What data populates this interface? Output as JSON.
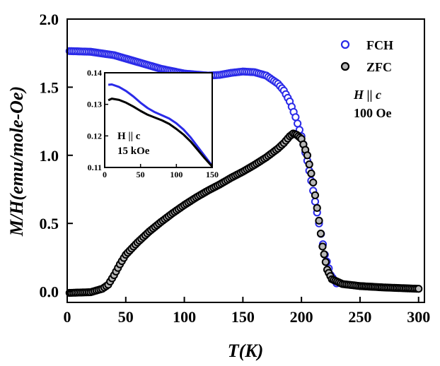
{
  "chart_data": {
    "type": "scatter",
    "title": "",
    "xlabel": "T(K)",
    "ylabel": "M/H(emu/mole-Oe)",
    "xlim": [
      0,
      305
    ],
    "ylim": [
      -0.08,
      2.0
    ],
    "xticks": [
      "0",
      "50",
      "100",
      "150",
      "200",
      "250",
      "300"
    ],
    "yticks": [
      "0.0",
      "0.5",
      "1.0",
      "1.5",
      "2.0"
    ],
    "legend_position": "top-right",
    "series": [
      {
        "name": "FCH",
        "color": "#2a2ae8",
        "fill": "#ffffff",
        "points": [
          [
            2,
            1.765
          ],
          [
            20,
            1.76
          ],
          [
            40,
            1.735
          ],
          [
            60,
            1.685
          ],
          [
            80,
            1.635
          ],
          [
            100,
            1.6
          ],
          [
            120,
            1.585
          ],
          [
            130,
            1.59
          ],
          [
            140,
            1.605
          ],
          [
            150,
            1.615
          ],
          [
            160,
            1.61
          ],
          [
            170,
            1.585
          ],
          [
            180,
            1.525
          ],
          [
            185,
            1.475
          ],
          [
            190,
            1.395
          ],
          [
            195,
            1.28
          ],
          [
            200,
            1.14
          ],
          [
            205,
            0.96
          ],
          [
            210,
            0.74
          ],
          [
            215,
            0.5
          ],
          [
            220,
            0.27
          ],
          [
            225,
            0.12
          ],
          [
            230,
            0.06
          ]
        ]
      },
      {
        "name": "ZFC",
        "color": "#000000",
        "fill": "#b8b8b8",
        "points": [
          [
            2,
            -0.01
          ],
          [
            20,
            -0.005
          ],
          [
            30,
            0.02
          ],
          [
            35,
            0.05
          ],
          [
            40,
            0.12
          ],
          [
            45,
            0.2
          ],
          [
            50,
            0.27
          ],
          [
            60,
            0.36
          ],
          [
            70,
            0.44
          ],
          [
            80,
            0.51
          ],
          [
            90,
            0.575
          ],
          [
            100,
            0.635
          ],
          [
            110,
            0.69
          ],
          [
            120,
            0.74
          ],
          [
            130,
            0.785
          ],
          [
            140,
            0.835
          ],
          [
            150,
            0.88
          ],
          [
            160,
            0.93
          ],
          [
            170,
            0.985
          ],
          [
            180,
            1.05
          ],
          [
            185,
            1.09
          ],
          [
            190,
            1.14
          ],
          [
            193,
            1.16
          ],
          [
            196,
            1.15
          ],
          [
            200,
            1.12
          ],
          [
            205,
            1.0
          ],
          [
            210,
            0.8
          ],
          [
            215,
            0.52
          ],
          [
            218,
            0.33
          ],
          [
            222,
            0.16
          ],
          [
            226,
            0.09
          ],
          [
            235,
            0.055
          ],
          [
            250,
            0.04
          ],
          [
            270,
            0.03
          ],
          [
            300,
            0.02
          ]
        ]
      }
    ],
    "annotations": [
      {
        "main": "H || c",
        "italic": "H",
        "sep": " || ",
        "italic2": "c"
      },
      {
        "main": "100 Oe"
      }
    ],
    "inset": {
      "xlim": [
        0,
        150
      ],
      "ylim": [
        0.11,
        0.14
      ],
      "xticks": [
        "0",
        "50",
        "100",
        "150"
      ],
      "yticks": [
        "0.11",
        "0.12",
        "0.13",
        "0.14"
      ],
      "series": [
        {
          "name": "FCH",
          "color": "#2a2ae8",
          "points": [
            [
              5,
              0.1362
            ],
            [
              10,
              0.1363
            ],
            [
              20,
              0.1355
            ],
            [
              30,
              0.1342
            ],
            [
              40,
              0.1325
            ],
            [
              50,
              0.1305
            ],
            [
              60,
              0.1288
            ],
            [
              70,
              0.1275
            ],
            [
              80,
              0.1265
            ],
            [
              90,
              0.1255
            ],
            [
              100,
              0.124
            ],
            [
              110,
              0.122
            ],
            [
              120,
              0.1195
            ],
            [
              130,
              0.1165
            ],
            [
              140,
              0.1135
            ],
            [
              150,
              0.1105
            ]
          ]
        },
        {
          "name": "ZFC",
          "color": "#000000",
          "points": [
            [
              5,
              0.1313
            ],
            [
              10,
              0.1318
            ],
            [
              20,
              0.1314
            ],
            [
              30,
              0.1305
            ],
            [
              40,
              0.1293
            ],
            [
              50,
              0.1279
            ],
            [
              60,
              0.1267
            ],
            [
              70,
              0.1258
            ],
            [
              80,
              0.1249
            ],
            [
              90,
              0.1238
            ],
            [
              100,
              0.1222
            ],
            [
              110,
              0.1204
            ],
            [
              120,
              0.1182
            ],
            [
              130,
              0.1155
            ],
            [
              140,
              0.1128
            ],
            [
              150,
              0.1103
            ]
          ]
        }
      ],
      "annotation_line1": "H || c",
      "annotation_line2": "15 kOe"
    }
  }
}
